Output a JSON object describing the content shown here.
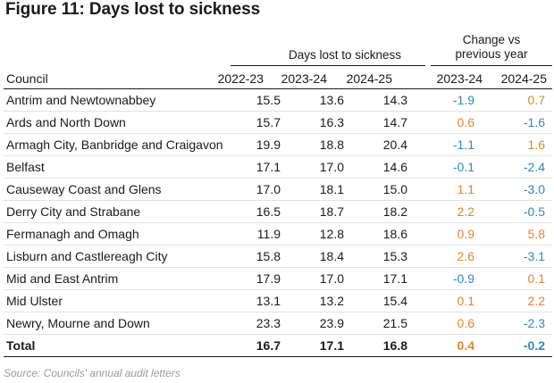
{
  "title": "Figure 11: Days lost to sickness",
  "header": {
    "group_days": "Days lost to sickness",
    "group_change_line1": "Change vs",
    "group_change_line2": "previous year",
    "col_council": "Council",
    "col_2022_23": "2022-23",
    "col_2023_24": "2023-24",
    "col_2024_25": "2024-25",
    "col_change_2023_24": "2023-24",
    "col_change_2024_25": "2024-25"
  },
  "rows": [
    {
      "council": "Antrim and Newtownabbey",
      "y2022": "15.5",
      "y2023": "13.6",
      "y2024": "14.3",
      "ch2023": "-1.9",
      "ch2024": "0.7"
    },
    {
      "council": "Ards and North Down",
      "y2022": "15.7",
      "y2023": "16.3",
      "y2024": "14.7",
      "ch2023": "0.6",
      "ch2024": "-1.6"
    },
    {
      "council": "Armagh City, Banbridge and Craigavon",
      "y2022": "19.9",
      "y2023": "18.8",
      "y2024": "20.4",
      "ch2023": "-1.1",
      "ch2024": "1.6"
    },
    {
      "council": "Belfast",
      "y2022": "17.1",
      "y2023": "17.0",
      "y2024": "14.6",
      "ch2023": "-0.1",
      "ch2024": "-2.4"
    },
    {
      "council": "Causeway Coast and Glens",
      "y2022": "17.0",
      "y2023": "18.1",
      "y2024": "15.0",
      "ch2023": "1.1",
      "ch2024": "-3.0"
    },
    {
      "council": "Derry City and Strabane",
      "y2022": "16.5",
      "y2023": "18.7",
      "y2024": "18.2",
      "ch2023": "2.2",
      "ch2024": "-0.5"
    },
    {
      "council": "Fermanagh and Omagh",
      "y2022": "11.9",
      "y2023": "12.8",
      "y2024": "18.6",
      "ch2023": "0.9",
      "ch2024": "5.8"
    },
    {
      "council": "Lisburn and Castlereagh City",
      "y2022": "15.8",
      "y2023": "18.4",
      "y2024": "15.3",
      "ch2023": "2.6",
      "ch2024": "-3.1"
    },
    {
      "council": "Mid and East Antrim",
      "y2022": "17.9",
      "y2023": "17.0",
      "y2024": "17.1",
      "ch2023": "-0.9",
      "ch2024": "0.1"
    },
    {
      "council": "Mid Ulster",
      "y2022": "13.1",
      "y2023": "13.2",
      "y2024": "15.4",
      "ch2023": "0.1",
      "ch2024": "2.2"
    },
    {
      "council": "Newry, Mourne and Down",
      "y2022": "23.3",
      "y2023": "23.9",
      "y2024": "21.5",
      "ch2023": "0.6",
      "ch2024": "-2.3"
    }
  ],
  "total": {
    "council": "Total",
    "y2022": "16.7",
    "y2023": "17.1",
    "y2024": "16.8",
    "ch2023": "0.4",
    "ch2024": "-0.2"
  },
  "source": "Source: Councils' annual audit letters",
  "colors": {
    "positive_change": "#e8832a",
    "negative_change": "#2f86c8"
  }
}
